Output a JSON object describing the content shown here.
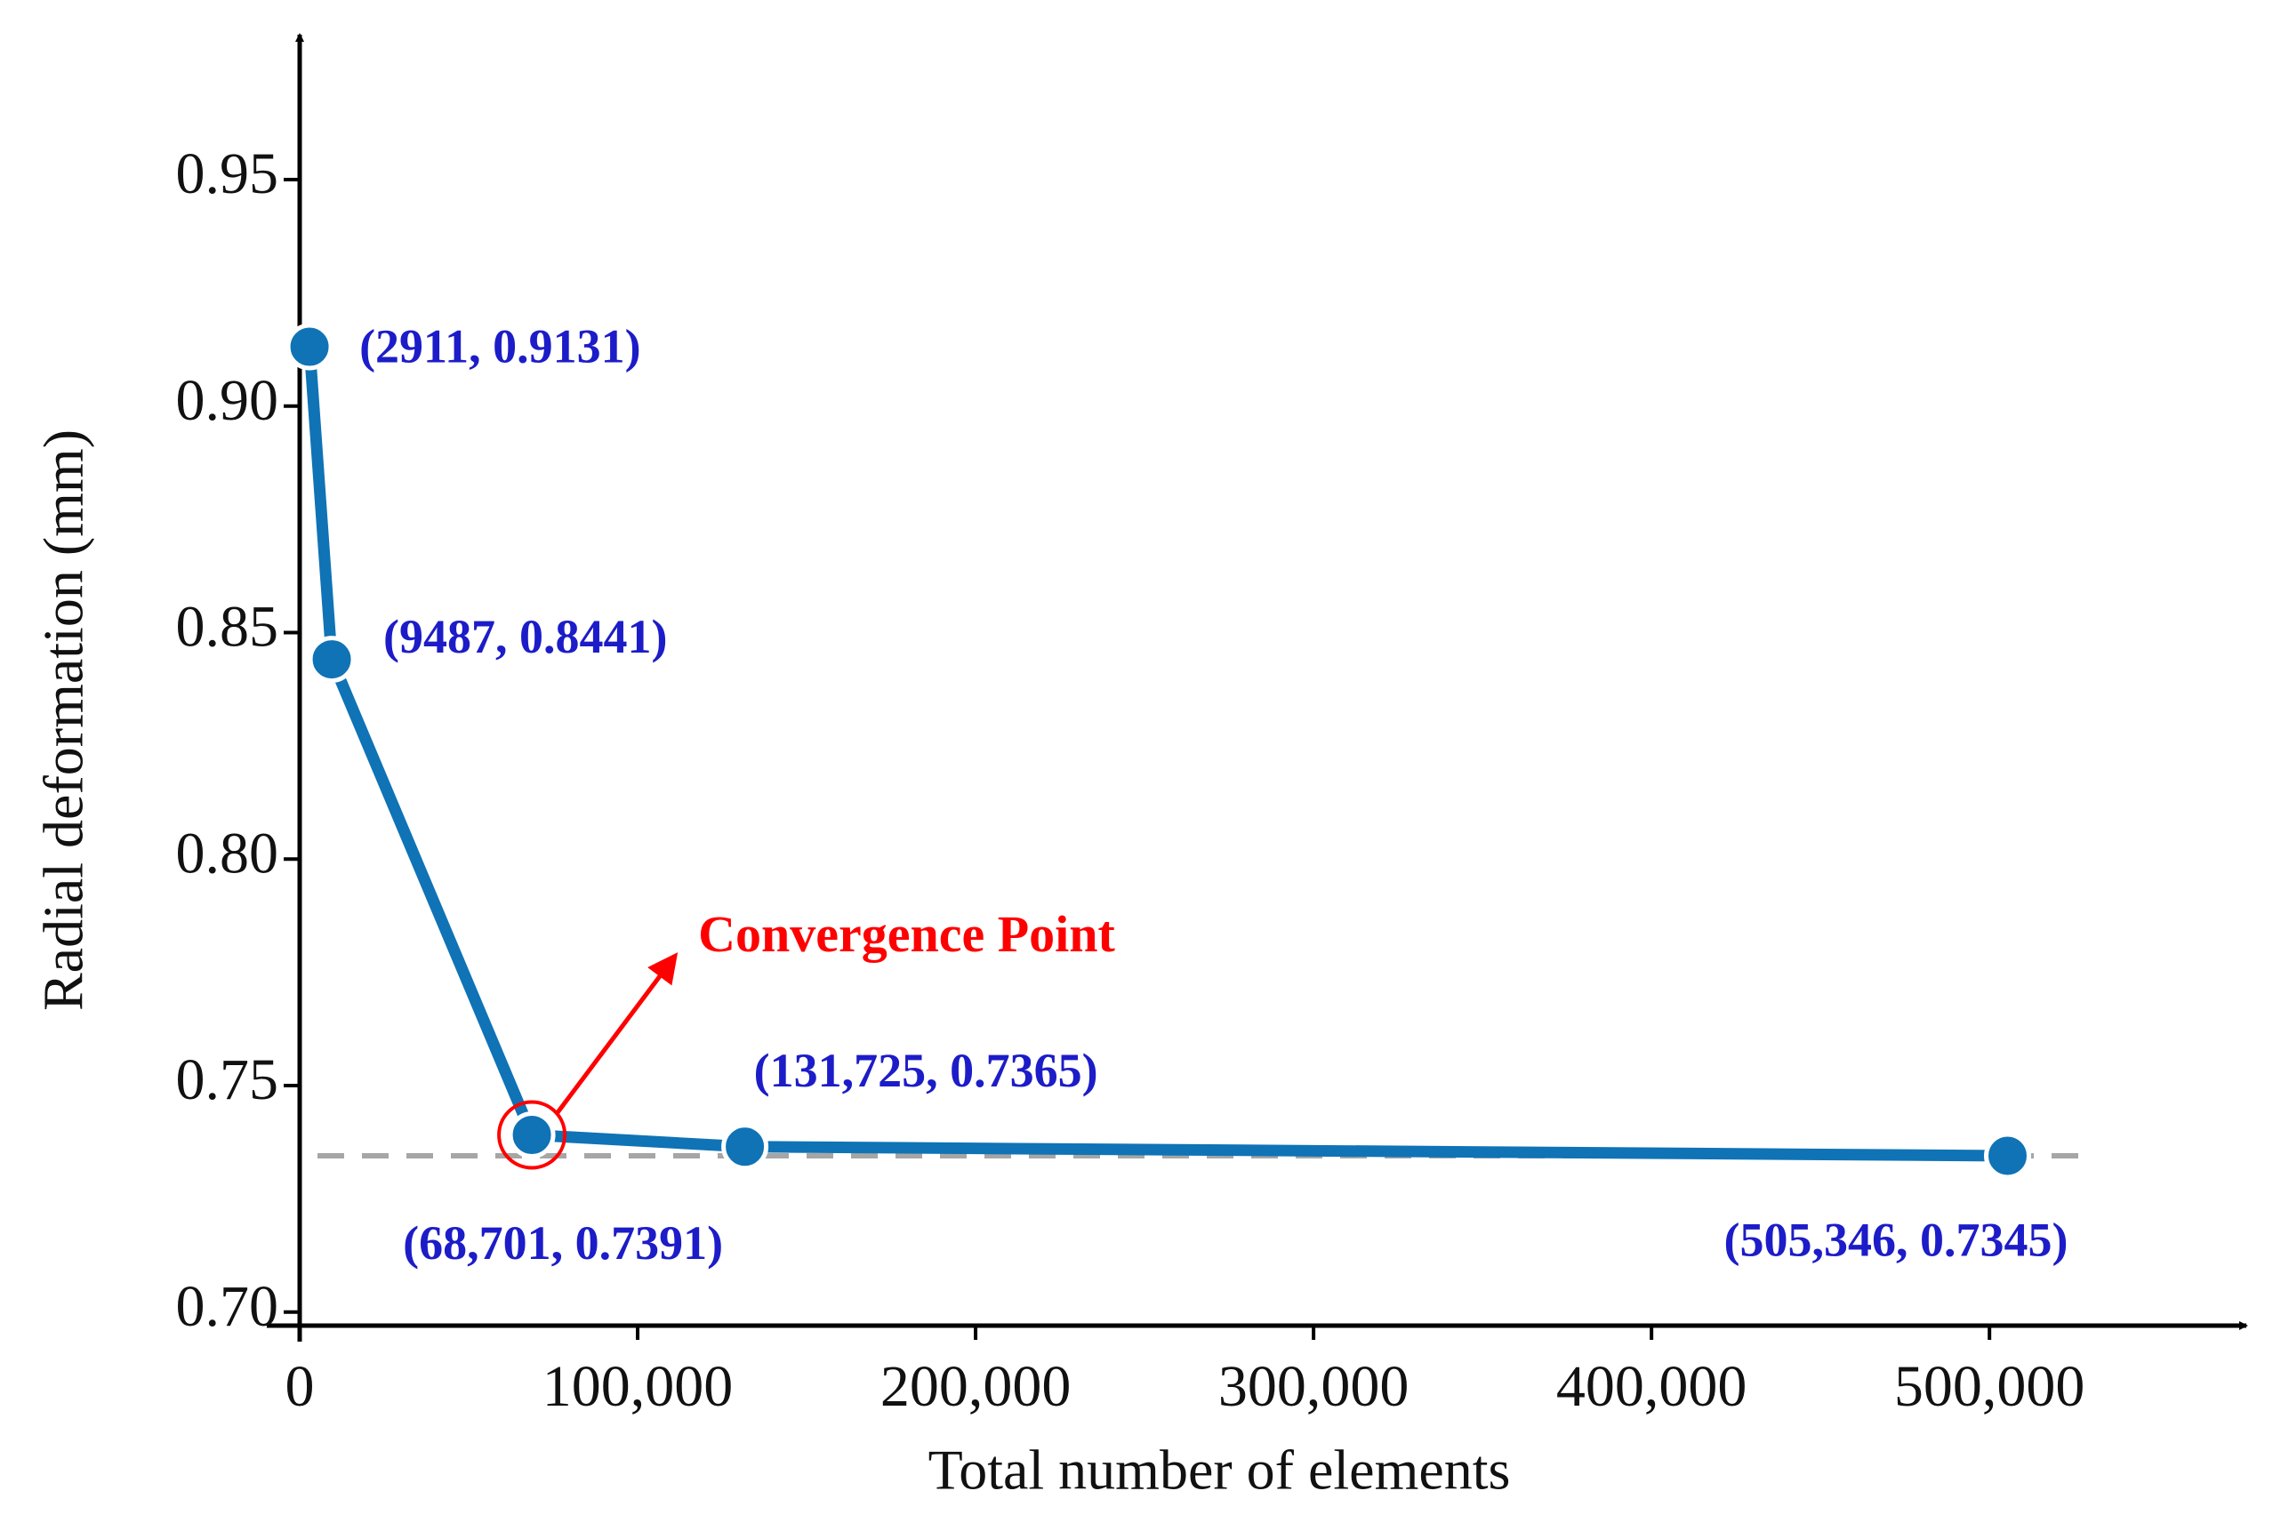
{
  "chart_data": {
    "type": "line",
    "x": [
      2911,
      9487,
      68701,
      131725,
      505346
    ],
    "values": [
      0.9131,
      0.8441,
      0.7391,
      0.7365,
      0.7345
    ],
    "value_labels": [
      "(2911, 0.9131)",
      "(9487, 0.8441)",
      "(68,701, 0.7391)",
      "(131,725, 0.7365)",
      "(505,346, 0.7345)"
    ],
    "color": "#0f73b6",
    "xlabel": "Total number of elements",
    "ylabel": "Radial deformation (mm)",
    "xlim": [
      0,
      576000
    ],
    "ylim": [
      0.697,
      0.982
    ],
    "xticks": [
      0,
      {
        "value": 100000,
        "label": "100,000"
      },
      {
        "value": 200000,
        "label": "200,000"
      },
      {
        "value": 300000,
        "label": "300,000"
      },
      {
        "value": 400000,
        "label": "400,000"
      },
      {
        "value": 500000,
        "label": "500,000"
      }
    ],
    "yticks": [
      {
        "value": 0.7,
        "label": "0.70"
      },
      0.75,
      {
        "value": 0.8,
        "label": "0.80"
      },
      0.85,
      {
        "value": 0.9,
        "label": "0.90"
      },
      0.95
    ],
    "reference_line": {
      "value": 0.7345,
      "color": "#a6a6a6",
      "style": "dashed"
    },
    "annotation": {
      "text": "Convergence Point",
      "point": 2,
      "color": "#ff0000"
    },
    "grid": false
  }
}
